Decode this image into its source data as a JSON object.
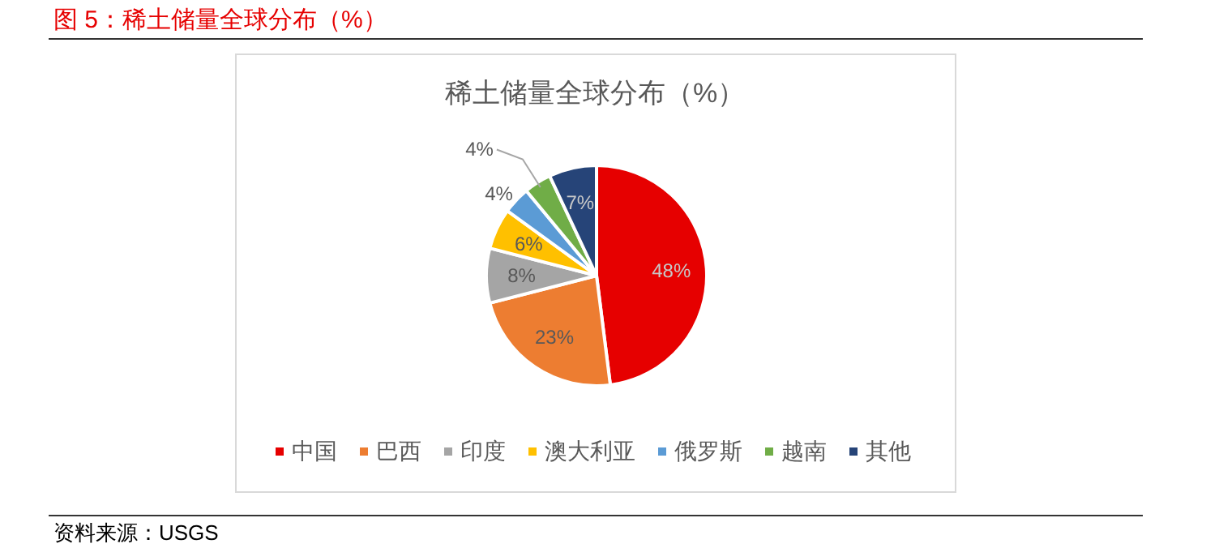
{
  "chart_data": {
    "type": "pie",
    "title": "图 5：稀土储量全球分布（%）",
    "subtitle": "稀土储量全球分布（%）",
    "categories": [
      "中国",
      "巴西",
      "印度",
      "澳大利亚",
      "俄罗斯",
      "越南",
      "其他"
    ],
    "values": [
      48,
      23,
      8,
      6,
      4,
      4,
      7
    ],
    "colors": [
      "#e60000",
      "#ed7d31",
      "#a5a5a5",
      "#ffc000",
      "#5b9bd5",
      "#70ad47",
      "#264478"
    ],
    "value_labels": [
      "48%",
      "23%",
      "8%",
      "6%",
      "4%",
      "4%",
      "7%"
    ],
    "legend": "bottom",
    "annotations": [
      "资料来源：USGS"
    ]
  }
}
